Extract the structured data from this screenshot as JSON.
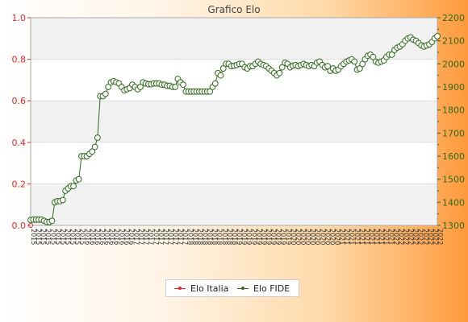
{
  "chart_data": {
    "type": "line",
    "title": "Grafico Elo",
    "y_left": {
      "lim": [
        0,
        1.0
      ],
      "ticks": [
        "0.0",
        "0.2",
        "0.4",
        "0.6",
        "0.8",
        "1.0"
      ]
    },
    "y_right": {
      "lim": [
        1300,
        2200
      ],
      "ticks": [
        "1300",
        "1400",
        "1500",
        "1600",
        "1700",
        "1800",
        "1900",
        "2000",
        "2100",
        "2200"
      ]
    },
    "x_labels": [
      "2015",
      "2016",
      "2017",
      "2018",
      "2019",
      "2020",
      "2021",
      "2022"
    ],
    "series": [
      {
        "name": "Elo Italia",
        "axis": "left",
        "color": "#e8262a",
        "values": [
          0
        ]
      },
      {
        "name": "Elo FIDE",
        "axis": "right",
        "color": "#2e6b1a",
        "values": [
          1323,
          1325,
          1325,
          1325,
          1325,
          1320,
          1315,
          1315,
          1320,
          1400,
          1405,
          1405,
          1410,
          1450,
          1460,
          1470,
          1470,
          1495,
          1500,
          1600,
          1600,
          1600,
          1610,
          1620,
          1640,
          1680,
          1860,
          1860,
          1870,
          1900,
          1920,
          1925,
          1920,
          1915,
          1900,
          1885,
          1890,
          1895,
          1910,
          1900,
          1890,
          1900,
          1920,
          1915,
          1912,
          1912,
          1915,
          1915,
          1915,
          1910,
          1910,
          1905,
          1905,
          1900,
          1900,
          1935,
          1920,
          1910,
          1880,
          1880,
          1880,
          1880,
          1880,
          1880,
          1880,
          1880,
          1880,
          1880,
          1900,
          1915,
          1960,
          1950,
          1980,
          2000,
          2000,
          1990,
          1992,
          1995,
          2000,
          2000,
          1985,
          1980,
          1990,
          1990,
          2000,
          2010,
          2000,
          1995,
          1990,
          1980,
          1970,
          1960,
          1950,
          1960,
          1985,
          2005,
          2000,
          1985,
          1992,
          1995,
          1990,
          1995,
          2000,
          1995,
          1990,
          1995,
          1990,
          2005,
          2010,
          1995,
          1985,
          1990,
          1970,
          1980,
          1970,
          1975,
          1990,
          2000,
          2010,
          2015,
          2020,
          2010,
          1975,
          1980,
          2000,
          2020,
          2035,
          2040,
          2030,
          2010,
          2005,
          2010,
          2015,
          2030,
          2040,
          2040,
          2060,
          2070,
          2075,
          2085,
          2100,
          2110,
          2115,
          2105,
          2100,
          2090,
          2080,
          2075,
          2080,
          2085,
          2095,
          2110,
          2120
        ]
      }
    ]
  }
}
